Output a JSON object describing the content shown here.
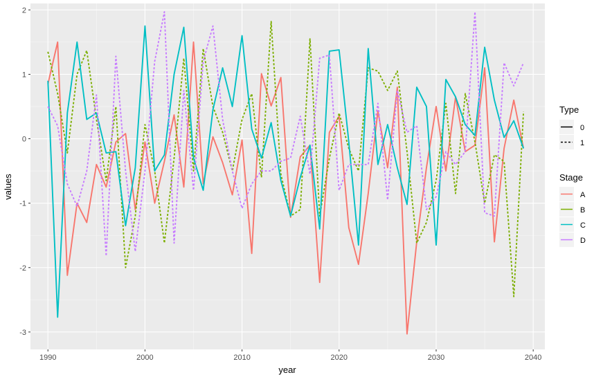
{
  "chart_data": {
    "type": "line",
    "xlabel": "year",
    "ylabel": "values",
    "xlim": [
      1988.2,
      2041.2
    ],
    "ylim": [
      -3.27,
      2.1
    ],
    "x_ticks": [
      1990,
      2000,
      2010,
      2020,
      2030,
      2040
    ],
    "y_ticks": [
      -3,
      -2,
      -1,
      0,
      1,
      2
    ],
    "x_tick_labels": [
      "1990",
      "2000",
      "2010",
      "2020",
      "2030",
      "2040"
    ],
    "y_tick_labels": [
      "-3",
      "-2",
      "-1",
      "0",
      "1",
      "2"
    ],
    "grid": true,
    "legend_position": "right",
    "legends": {
      "type": {
        "title": "Type",
        "items": [
          {
            "label": "0",
            "dash": "solid"
          },
          {
            "label": "1",
            "dash": "dashed"
          }
        ]
      },
      "stage": {
        "title": "Stage",
        "items": [
          {
            "label": "A",
            "color": "#F8766D"
          },
          {
            "label": "B",
            "color": "#7CAE00"
          },
          {
            "label": "C",
            "color": "#00BFC4"
          },
          {
            "label": "D",
            "color": "#C77CFF"
          }
        ]
      }
    },
    "series": [
      {
        "name": "A",
        "type": "0",
        "color": "#F8766D",
        "dash": "solid",
        "x": [
          1990,
          1991,
          1992,
          1993,
          1994,
          1995,
          1996,
          1997,
          1998,
          1999,
          2000,
          2001,
          2002,
          2003,
          2004,
          2005,
          2006,
          2007,
          2008,
          2009,
          2010,
          2011,
          2012,
          2013,
          2014,
          2015,
          2016,
          2017,
          2018,
          2019,
          2020,
          2021,
          2022,
          2023,
          2024,
          2025,
          2026,
          2027,
          2028,
          2029,
          2030,
          2031,
          2032,
          2033,
          2034,
          2035,
          2036,
          2037,
          2038,
          2039
        ],
        "y": [
          0.85,
          1.5,
          -2.12,
          -1.0,
          -1.3,
          -0.4,
          -0.75,
          -0.05,
          0.08,
          -1.1,
          -0.05,
          -1.0,
          -0.35,
          0.37,
          -0.75,
          1.5,
          -0.7,
          0.03,
          -0.37,
          -0.87,
          -0.02,
          -1.78,
          1.01,
          0.51,
          0.95,
          -1.22,
          -0.28,
          -0.1,
          -2.23,
          0.1,
          0.35,
          -1.38,
          -1.95,
          -0.85,
          0.43,
          -0.45,
          0.8,
          -3.03,
          -1.6,
          -0.45,
          0.5,
          -0.5,
          0.65,
          -0.2,
          -0.1,
          1.1,
          -1.6,
          -0.15,
          0.6,
          -0.15
        ]
      },
      {
        "name": "B",
        "type": "1",
        "color": "#7CAE00",
        "dash": "dashed",
        "x": [
          1990,
          1991,
          1992,
          1993,
          1994,
          1995,
          1996,
          1997,
          1998,
          1999,
          2000,
          2001,
          2002,
          2003,
          2004,
          2005,
          2006,
          2007,
          2008,
          2009,
          2010,
          2011,
          2012,
          2013,
          2014,
          2015,
          2016,
          2017,
          2018,
          2019,
          2020,
          2021,
          2022,
          2023,
          2024,
          2025,
          2026,
          2027,
          2028,
          2029,
          2030,
          2031,
          2032,
          2033,
          2034,
          2035,
          2036,
          2037,
          2038,
          2039
        ],
        "y": [
          1.35,
          0.7,
          -0.22,
          1.0,
          1.37,
          0.3,
          -0.65,
          0.5,
          -2.0,
          -1.2,
          0.22,
          -0.5,
          -1.62,
          -0.3,
          1.25,
          -0.5,
          1.4,
          0.5,
          0.1,
          -0.5,
          0.3,
          0.7,
          -0.6,
          1.82,
          -0.55,
          -1.2,
          -1.1,
          1.55,
          -1.2,
          -0.3,
          0.4,
          -0.15,
          -0.5,
          1.1,
          1.05,
          0.75,
          1.05,
          -0.2,
          -1.62,
          -1.3,
          -0.65,
          0.55,
          -0.85,
          0.7,
          -0.05,
          -1.0,
          -0.25,
          -0.35,
          -2.45,
          0.42
        ]
      },
      {
        "name": "C",
        "type": "0",
        "color": "#00BFC4",
        "dash": "solid",
        "x": [
          1990,
          1991,
          1992,
          1993,
          1994,
          1995,
          1996,
          1997,
          1998,
          1999,
          2000,
          2001,
          2002,
          2003,
          2004,
          2005,
          2006,
          2007,
          2008,
          2009,
          2010,
          2011,
          2012,
          2013,
          2014,
          2015,
          2016,
          2017,
          2018,
          2019,
          2020,
          2021,
          2022,
          2023,
          2024,
          2025,
          2026,
          2027,
          2028,
          2029,
          2030,
          2031,
          2032,
          2033,
          2034,
          2035,
          2036,
          2037,
          2038,
          2039
        ],
        "y": [
          0.9,
          -2.77,
          0.4,
          1.5,
          0.3,
          0.4,
          -0.22,
          -0.2,
          -1.35,
          -0.45,
          1.75,
          -0.5,
          -0.25,
          1.0,
          1.73,
          -0.3,
          -0.8,
          0.45,
          1.1,
          0.5,
          1.6,
          0.15,
          -0.3,
          0.25,
          -0.65,
          -1.2,
          -0.6,
          -0.1,
          -1.4,
          1.36,
          1.38,
          -0.05,
          -1.65,
          1.4,
          -0.4,
          0.22,
          -0.45,
          -1.02,
          0.8,
          0.5,
          -1.65,
          0.92,
          0.65,
          0.22,
          0.05,
          1.42,
          0.6,
          0.02,
          0.28,
          -0.15
        ]
      },
      {
        "name": "D",
        "type": "1",
        "color": "#C77CFF",
        "dash": "dashed",
        "x": [
          1990,
          1991,
          1992,
          1993,
          1994,
          1995,
          1996,
          1997,
          1998,
          1999,
          2000,
          2001,
          2002,
          2003,
          2004,
          2005,
          2006,
          2007,
          2008,
          2009,
          2010,
          2011,
          2012,
          2013,
          2014,
          2015,
          2016,
          2017,
          2018,
          2019,
          2020,
          2021,
          2022,
          2023,
          2024,
          2025,
          2026,
          2027,
          2028,
          2029,
          2030,
          2031,
          2032,
          2033,
          2034,
          2035,
          2036,
          2037,
          2038,
          2039
        ],
        "y": [
          0.5,
          0.2,
          -0.7,
          -1.05,
          -0.5,
          0.68,
          -1.82,
          1.28,
          -0.5,
          -1.75,
          -0.5,
          1.2,
          1.97,
          -1.62,
          0.75,
          -0.8,
          1.2,
          1.75,
          0.3,
          -0.5,
          -1.08,
          -0.7,
          -0.5,
          -0.5,
          -0.35,
          -0.3,
          0.35,
          -0.55,
          1.25,
          1.3,
          -0.8,
          -0.4,
          -0.4,
          -0.4,
          0.55,
          -0.95,
          0.75,
          0.1,
          0.2,
          -1.1,
          -0.9,
          -0.2,
          -0.4,
          -0.2,
          1.97,
          -1.15,
          -1.2,
          1.18,
          0.82,
          1.18
        ]
      }
    ]
  }
}
